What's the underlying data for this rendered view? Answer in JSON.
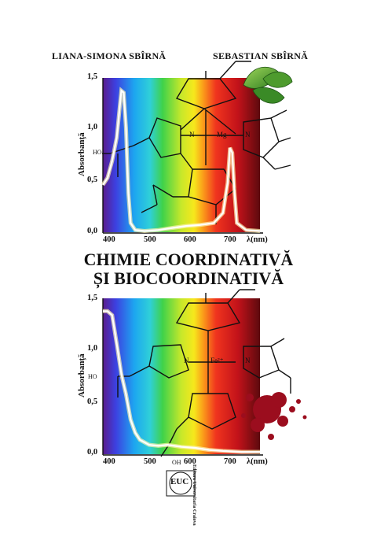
{
  "authors": [
    "LIANA-SIMONA SBÎRNĂ",
    "SEBASTIAN SBÎRNĂ"
  ],
  "title_line1": "CHIMIE COORDINATIVĂ",
  "title_line2": "ȘI BIOCOORDINATIVĂ",
  "publisher": "Editura Universitaria Craiova",
  "publisher_logo": "EUC",
  "chart_data": [
    {
      "type": "line",
      "ylabel": "Absorbanţă",
      "xlabel": "λ(nm)",
      "yticks": [
        "1,5",
        "1,0",
        "0,5",
        "0,0"
      ],
      "xticks": [
        "400",
        "500",
        "600",
        "700"
      ],
      "ylim": [
        0,
        1.5
      ],
      "xlim": [
        380,
        720
      ],
      "molecule_labels": [
        "Mg",
        "N",
        "N",
        "HO"
      ],
      "x": [
        380,
        390,
        400,
        410,
        420,
        425,
        430,
        435,
        440,
        450,
        470,
        500,
        530,
        560,
        590,
        620,
        640,
        650,
        655,
        660,
        665,
        670,
        690,
        720
      ],
      "y": [
        0.48,
        0.55,
        0.72,
        0.95,
        1.42,
        1.4,
        1.05,
        0.4,
        0.1,
        0.03,
        0.02,
        0.03,
        0.05,
        0.07,
        0.08,
        0.1,
        0.2,
        0.5,
        0.85,
        0.8,
        0.4,
        0.1,
        0.03,
        0.02
      ]
    },
    {
      "type": "line",
      "ylabel": "Absorbanţă",
      "xlabel": "λ(nm)",
      "yticks": [
        "1,5",
        "1,0",
        "0,5",
        "0,0"
      ],
      "xticks": [
        "400",
        "500",
        "600",
        "700"
      ],
      "ylim": [
        0,
        1.5
      ],
      "xlim": [
        380,
        720
      ],
      "molecule_labels": [
        "Fe²⁺",
        "N",
        "N",
        "HO",
        "OH"
      ],
      "x": [
        380,
        390,
        400,
        410,
        420,
        430,
        440,
        450,
        460,
        480,
        500,
        520,
        550,
        580,
        610,
        640,
        680,
        720
      ],
      "y": [
        1.42,
        1.42,
        1.38,
        1.1,
        0.8,
        0.6,
        0.35,
        0.22,
        0.15,
        0.1,
        0.09,
        0.1,
        0.08,
        0.07,
        0.05,
        0.04,
        0.03,
        0.03
      ]
    }
  ]
}
